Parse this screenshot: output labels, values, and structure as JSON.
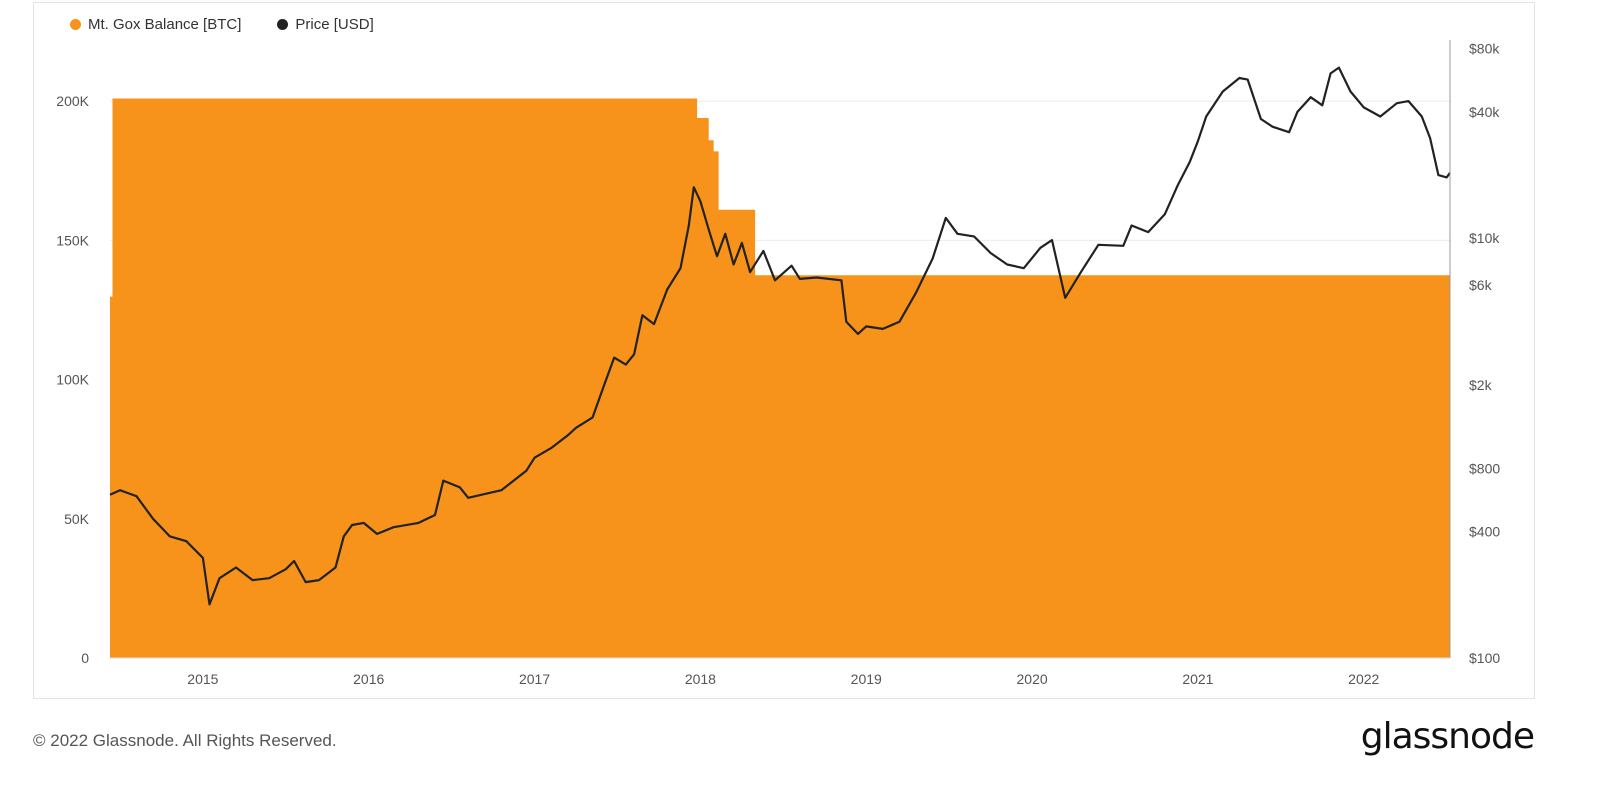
{
  "chart_data": {
    "type": "area",
    "legend": {
      "placement": "top-left",
      "items": [
        {
          "label": "Mt. Gox Balance [BTC]",
          "color": "#f7931a",
          "icon": "circle-dot-icon"
        },
        {
          "label": "Price [USD]",
          "color": "#222222",
          "icon": "circle-dot-icon"
        }
      ]
    },
    "x_ticks": [
      "2015",
      "2016",
      "2017",
      "2018",
      "2019",
      "2020",
      "2021",
      "2022"
    ],
    "x_range": [
      2014.44,
      2022.52
    ],
    "y_left": {
      "ticks": [
        "0",
        "50K",
        "100K",
        "150K",
        "200K"
      ],
      "tick_values": [
        0,
        50000,
        100000,
        150000,
        200000
      ],
      "range": [
        0,
        222000
      ]
    },
    "y_right": {
      "scale": "log",
      "ticks": [
        "$100",
        "$400",
        "$800",
        "$2k",
        "$6k",
        "$10k",
        "$40k",
        "$80k"
      ],
      "tick_values": [
        100,
        400,
        800,
        2000,
        6000,
        10000,
        40000,
        80000
      ],
      "range": [
        100,
        88000
      ]
    },
    "grid": true,
    "series": [
      {
        "name": "Mt. Gox Balance [BTC]",
        "kind": "area-step",
        "color": "#f7931a",
        "points": [
          [
            2014.44,
            129800
          ],
          [
            2014.455,
            201000
          ],
          [
            2017.97,
            201000
          ],
          [
            2017.98,
            194000
          ],
          [
            2018.04,
            194000
          ],
          [
            2018.05,
            186000
          ],
          [
            2018.07,
            186000
          ],
          [
            2018.08,
            182000
          ],
          [
            2018.1,
            182000
          ],
          [
            2018.11,
            161000
          ],
          [
            2018.32,
            161000
          ],
          [
            2018.33,
            137500
          ],
          [
            2022.52,
            137500
          ]
        ]
      },
      {
        "name": "Price [USD]",
        "kind": "line",
        "color": "#222222",
        "points": [
          [
            2014.44,
            600
          ],
          [
            2014.5,
            630
          ],
          [
            2014.6,
            590
          ],
          [
            2014.7,
            460
          ],
          [
            2014.8,
            380
          ],
          [
            2014.9,
            360
          ],
          [
            2015.0,
            300
          ],
          [
            2015.04,
            180
          ],
          [
            2015.1,
            240
          ],
          [
            2015.2,
            270
          ],
          [
            2015.3,
            235
          ],
          [
            2015.4,
            240
          ],
          [
            2015.5,
            265
          ],
          [
            2015.55,
            290
          ],
          [
            2015.62,
            230
          ],
          [
            2015.7,
            235
          ],
          [
            2015.8,
            270
          ],
          [
            2015.85,
            380
          ],
          [
            2015.9,
            430
          ],
          [
            2015.97,
            440
          ],
          [
            2016.05,
            390
          ],
          [
            2016.15,
            420
          ],
          [
            2016.3,
            440
          ],
          [
            2016.4,
            480
          ],
          [
            2016.45,
            700
          ],
          [
            2016.55,
            650
          ],
          [
            2016.6,
            580
          ],
          [
            2016.8,
            630
          ],
          [
            2016.95,
            780
          ],
          [
            2017.0,
            900
          ],
          [
            2017.1,
            1000
          ],
          [
            2017.2,
            1150
          ],
          [
            2017.25,
            1250
          ],
          [
            2017.35,
            1400
          ],
          [
            2017.42,
            2000
          ],
          [
            2017.48,
            2700
          ],
          [
            2017.55,
            2500
          ],
          [
            2017.6,
            2800
          ],
          [
            2017.65,
            4300
          ],
          [
            2017.72,
            3900
          ],
          [
            2017.8,
            5700
          ],
          [
            2017.88,
            7200
          ],
          [
            2017.93,
            11500
          ],
          [
            2017.96,
            17500
          ],
          [
            2018.0,
            15000
          ],
          [
            2018.05,
            11000
          ],
          [
            2018.1,
            8200
          ],
          [
            2018.15,
            10500
          ],
          [
            2018.2,
            7500
          ],
          [
            2018.25,
            9500
          ],
          [
            2018.3,
            6900
          ],
          [
            2018.38,
            8700
          ],
          [
            2018.45,
            6300
          ],
          [
            2018.55,
            7400
          ],
          [
            2018.6,
            6400
          ],
          [
            2018.7,
            6500
          ],
          [
            2018.85,
            6300
          ],
          [
            2018.88,
            4000
          ],
          [
            2018.95,
            3500
          ],
          [
            2019.0,
            3800
          ],
          [
            2019.1,
            3700
          ],
          [
            2019.2,
            4000
          ],
          [
            2019.3,
            5500
          ],
          [
            2019.4,
            8000
          ],
          [
            2019.48,
            12500
          ],
          [
            2019.55,
            10500
          ],
          [
            2019.65,
            10200
          ],
          [
            2019.75,
            8500
          ],
          [
            2019.85,
            7500
          ],
          [
            2019.95,
            7200
          ],
          [
            2020.05,
            9000
          ],
          [
            2020.12,
            9800
          ],
          [
            2020.2,
            5200
          ],
          [
            2020.3,
            7000
          ],
          [
            2020.4,
            9300
          ],
          [
            2020.55,
            9200
          ],
          [
            2020.6,
            11500
          ],
          [
            2020.7,
            10700
          ],
          [
            2020.8,
            13000
          ],
          [
            2020.88,
            18000
          ],
          [
            2020.95,
            23000
          ],
          [
            2021.0,
            29000
          ],
          [
            2021.05,
            38000
          ],
          [
            2021.15,
            50000
          ],
          [
            2021.25,
            58000
          ],
          [
            2021.3,
            57000
          ],
          [
            2021.38,
            37000
          ],
          [
            2021.45,
            34000
          ],
          [
            2021.55,
            32000
          ],
          [
            2021.6,
            40000
          ],
          [
            2021.68,
            47000
          ],
          [
            2021.75,
            43000
          ],
          [
            2021.8,
            61000
          ],
          [
            2021.85,
            65000
          ],
          [
            2021.92,
            50000
          ],
          [
            2022.0,
            42000
          ],
          [
            2022.1,
            38000
          ],
          [
            2022.2,
            44000
          ],
          [
            2022.27,
            45000
          ],
          [
            2022.35,
            38000
          ],
          [
            2022.4,
            30000
          ],
          [
            2022.45,
            20000
          ],
          [
            2022.5,
            19500
          ],
          [
            2022.52,
            20500
          ]
        ]
      }
    ]
  },
  "footer": {
    "copyright": "© 2022 Glassnode. All Rights Reserved.",
    "logo": "glassnode"
  }
}
